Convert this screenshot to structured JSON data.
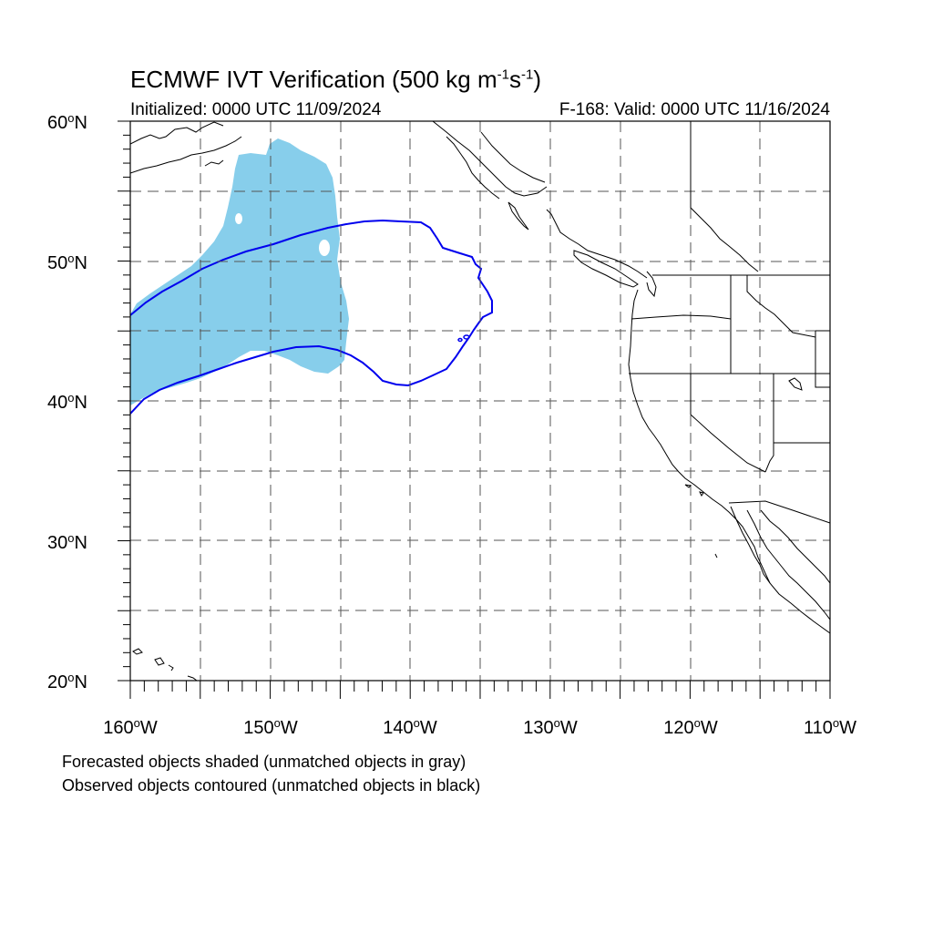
{
  "title": {
    "main_prefix": "ECMWF IVT Verification (500 kg m",
    "sup1": "-1",
    "mid": "s",
    "sup2": "-1",
    "suffix": ")"
  },
  "subtitle_left": "Initialized: 0000 UTC 11/09/2024",
  "subtitle_right": "F-168: Valid: 0000 UTC 11/16/2024",
  "lat_labels": [
    {
      "value": "60",
      "hemi": "N"
    },
    {
      "value": "50",
      "hemi": "N"
    },
    {
      "value": "40",
      "hemi": "N"
    },
    {
      "value": "30",
      "hemi": "N"
    },
    {
      "value": "20",
      "hemi": "N"
    }
  ],
  "lon_labels": [
    {
      "value": "160",
      "hemi": "W"
    },
    {
      "value": "150",
      "hemi": "W"
    },
    {
      "value": "140",
      "hemi": "W"
    },
    {
      "value": "130",
      "hemi": "W"
    },
    {
      "value": "120",
      "hemi": "W"
    },
    {
      "value": "110",
      "hemi": "W"
    }
  ],
  "deg_symbol": "o",
  "notes": {
    "line1": "Forecasted objects shaded (unmatched objects in gray)",
    "line2": "Observed objects contoured (unmatched objects in black)"
  },
  "colors": {
    "forecast_fill": "#87ceeb",
    "observed_contour": "#0000ee",
    "coastline": "#000000",
    "grid": "#555555"
  },
  "map": {
    "lon_range": [
      -160,
      -110
    ],
    "lat_range": [
      20,
      60
    ],
    "grid": "dashed every 5 degrees"
  }
}
